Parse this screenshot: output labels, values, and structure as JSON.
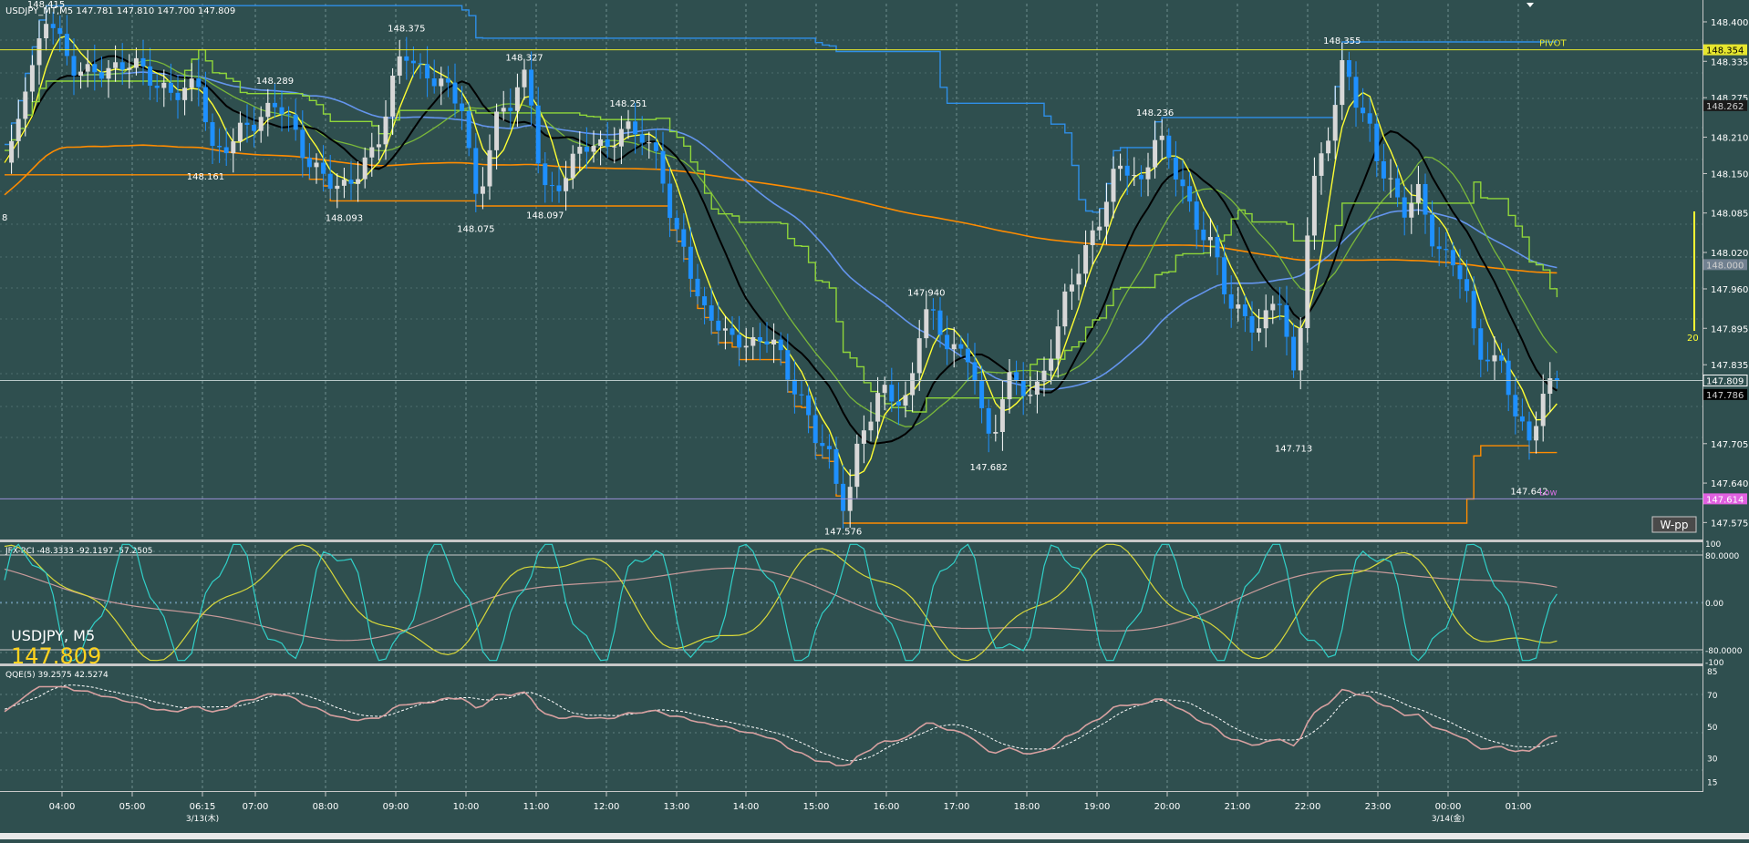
{
  "header": {
    "symbol_line": "USDJPY_MT,M5  147.781 147.810 147.700 147.809"
  },
  "main": {
    "price_labels": [
      {
        "text": "148.415",
        "price": 148.415,
        "i": 6,
        "pos": "above"
      },
      {
        "text": "148.375",
        "price": 148.375,
        "i": 58,
        "pos": "above"
      },
      {
        "text": "148.327",
        "price": 148.327,
        "i": 75,
        "pos": "above"
      },
      {
        "text": "148.289",
        "price": 148.289,
        "i": 39,
        "pos": "above"
      },
      {
        "text": "148.251",
        "price": 148.251,
        "i": 90,
        "pos": "above"
      },
      {
        "text": "148.161",
        "price": 148.161,
        "i": 29,
        "pos": "below"
      },
      {
        "text": "148.093",
        "price": 148.093,
        "i": 49,
        "pos": "below"
      },
      {
        "text": "148.075",
        "price": 148.075,
        "i": 68,
        "pos": "below"
      },
      {
        "text": "148.097",
        "price": 148.097,
        "i": 78,
        "pos": "below"
      },
      {
        "text": "147.940",
        "price": 147.94,
        "i": 133,
        "pos": "above"
      },
      {
        "text": "147.576",
        "price": 147.576,
        "i": 121,
        "pos": "below"
      },
      {
        "text": "147.682",
        "price": 147.682,
        "i": 142,
        "pos": "below"
      },
      {
        "text": "148.236",
        "price": 148.236,
        "i": 166,
        "pos": "above"
      },
      {
        "text": "147.713",
        "price": 147.713,
        "i": 186,
        "pos": "below"
      },
      {
        "text": "148.355",
        "price": 148.355,
        "i": 193,
        "pos": "above"
      },
      {
        "text": "147.642",
        "price": 147.642,
        "i": 220,
        "pos": "below"
      }
    ],
    "edge_label": "8",
    "pivot_label": "PIVOT",
    "low_label": "Low",
    "wpp_button": "W-pp",
    "hline_count": "20",
    "overlay_symbol": "USDJPY, M5",
    "overlay_price": "147.809"
  },
  "price_axis": {
    "ticks": [
      "148.400",
      "148.335",
      "148.275",
      "148.210",
      "148.150",
      "148.085",
      "148.020",
      "147.960",
      "147.895",
      "147.835",
      "147.705",
      "147.640",
      "147.575"
    ],
    "tags": {
      "pivot": "148.354",
      "upper": "148.262",
      "mid": "148.000",
      "current": "147.809",
      "lower": "147.786",
      "low": "147.614"
    }
  },
  "rci": {
    "title": "JFX-RCI -48.3333 -92.1197 -57.2505",
    "ticks": [
      "100",
      "80.0000",
      "0.00",
      "-80.0000",
      "-100"
    ]
  },
  "qqe": {
    "title": "QQE(5) 39.2575 42.5274",
    "ticks": [
      "85",
      "70",
      "50",
      "30",
      "15"
    ]
  },
  "time_axis": {
    "labels": [
      "04:00",
      "05:00",
      "06:15",
      "07:00",
      "08:00",
      "09:00",
      "10:00",
      "11:00",
      "12:00",
      "13:00",
      "14:00",
      "15:00",
      "16:00",
      "17:00",
      "18:00",
      "19:00",
      "20:00",
      "21:00",
      "22:00",
      "23:00",
      "00:00",
      "01:00"
    ],
    "dates": [
      "3/13(木)",
      "3/14(金)"
    ]
  },
  "colors": {
    "background": "#2f4f4f",
    "bull_candle": "#ffffff",
    "bear_candle": "#1e90ff",
    "pivot_line": "#e6e62e",
    "low_line": "#9b8fd6",
    "orange": "#ff8c00",
    "ma_black": "#000000",
    "ma_yellow": "#ffff33",
    "ma_green": "#9acd32",
    "ma_blue": "#6495ed"
  },
  "chart_data": {
    "type": "line",
    "timeframe": "M5",
    "y_range": [
      147.55,
      148.43
    ],
    "key_prices": {
      "pivot": 148.354,
      "low": 147.614,
      "current": 147.809
    },
    "anchors": [
      {
        "i": 0,
        "p": 148.16
      },
      {
        "i": 4,
        "p": 148.33
      },
      {
        "i": 6,
        "p": 148.4
      },
      {
        "i": 10,
        "p": 148.33
      },
      {
        "i": 14,
        "p": 148.31
      },
      {
        "i": 18,
        "p": 148.34
      },
      {
        "i": 22,
        "p": 148.29
      },
      {
        "i": 28,
        "p": 148.29
      },
      {
        "i": 30,
        "p": 148.19
      },
      {
        "i": 35,
        "p": 148.22
      },
      {
        "i": 39,
        "p": 148.27
      },
      {
        "i": 44,
        "p": 148.17
      },
      {
        "i": 49,
        "p": 148.12
      },
      {
        "i": 53,
        "p": 148.19
      },
      {
        "i": 58,
        "p": 148.35
      },
      {
        "i": 62,
        "p": 148.3
      },
      {
        "i": 66,
        "p": 148.27
      },
      {
        "i": 68,
        "p": 148.11
      },
      {
        "i": 72,
        "p": 148.26
      },
      {
        "i": 75,
        "p": 148.31
      },
      {
        "i": 78,
        "p": 148.12
      },
      {
        "i": 84,
        "p": 148.19
      },
      {
        "i": 90,
        "p": 148.22
      },
      {
        "i": 94,
        "p": 148.19
      },
      {
        "i": 97,
        "p": 148.04
      },
      {
        "i": 101,
        "p": 147.93
      },
      {
        "i": 105,
        "p": 147.87
      },
      {
        "i": 110,
        "p": 147.88
      },
      {
        "i": 114,
        "p": 147.8
      },
      {
        "i": 118,
        "p": 147.7
      },
      {
        "i": 121,
        "p": 147.61
      },
      {
        "i": 124,
        "p": 147.73
      },
      {
        "i": 127,
        "p": 147.79
      },
      {
        "i": 130,
        "p": 147.78
      },
      {
        "i": 133,
        "p": 147.92
      },
      {
        "i": 136,
        "p": 147.88
      },
      {
        "i": 139,
        "p": 147.84
      },
      {
        "i": 142,
        "p": 147.72
      },
      {
        "i": 145,
        "p": 147.81
      },
      {
        "i": 148,
        "p": 147.78
      },
      {
        "i": 151,
        "p": 147.86
      },
      {
        "i": 154,
        "p": 147.97
      },
      {
        "i": 158,
        "p": 148.08
      },
      {
        "i": 161,
        "p": 148.16
      },
      {
        "i": 164,
        "p": 148.14
      },
      {
        "i": 166,
        "p": 148.21
      },
      {
        "i": 169,
        "p": 148.15
      },
      {
        "i": 173,
        "p": 148.05
      },
      {
        "i": 177,
        "p": 147.94
      },
      {
        "i": 181,
        "p": 147.89
      },
      {
        "i": 184,
        "p": 147.95
      },
      {
        "i": 186,
        "p": 147.82
      },
      {
        "i": 189,
        "p": 148.13
      },
      {
        "i": 191,
        "p": 148.22
      },
      {
        "i": 193,
        "p": 148.33
      },
      {
        "i": 196,
        "p": 148.24
      },
      {
        "i": 199,
        "p": 148.16
      },
      {
        "i": 202,
        "p": 148.08
      },
      {
        "i": 204,
        "p": 148.12
      },
      {
        "i": 206,
        "p": 148.05
      },
      {
        "i": 208,
        "p": 148.01
      },
      {
        "i": 210,
        "p": 147.98
      },
      {
        "i": 213,
        "p": 147.86
      },
      {
        "i": 216,
        "p": 147.83
      },
      {
        "i": 218,
        "p": 147.75
      },
      {
        "i": 220,
        "p": 147.72
      },
      {
        "i": 222,
        "p": 147.78
      },
      {
        "i": 224,
        "p": 147.81
      }
    ]
  }
}
